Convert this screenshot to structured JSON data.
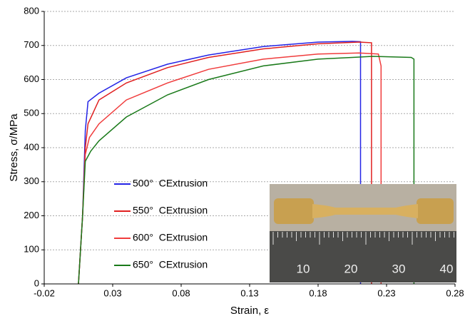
{
  "chart_data": {
    "type": "line",
    "xlabel": "Strain, ε",
    "ylabel": "Stress, σ/MPa",
    "xlim": [
      -0.02,
      0.28
    ],
    "xticks": [
      -0.02,
      0.03,
      0.08,
      0.13,
      0.18,
      0.23,
      0.28
    ],
    "ylim": [
      0,
      800
    ],
    "yticks": [
      0,
      100,
      200,
      300,
      400,
      500,
      600,
      700,
      800
    ],
    "grid": true,
    "legend": "lower-left",
    "inset_labels": [
      "10",
      "20",
      "30",
      "40"
    ],
    "series": [
      {
        "name": "500°  CExtrusion",
        "color": "#2424e6",
        "x": [
          0.005,
          0.008,
          0.01,
          0.012,
          0.02,
          0.04,
          0.07,
          0.1,
          0.14,
          0.18,
          0.205,
          0.211,
          0.211
        ],
        "values": [
          0,
          200,
          450,
          535,
          560,
          605,
          645,
          672,
          697,
          710,
          712,
          711,
          0
        ]
      },
      {
        "name": "550°  CExtrusion",
        "color": "#e02020",
        "x": [
          0.005,
          0.008,
          0.01,
          0.012,
          0.02,
          0.04,
          0.07,
          0.1,
          0.14,
          0.18,
          0.21,
          0.219,
          0.219
        ],
        "values": [
          0,
          200,
          400,
          470,
          540,
          590,
          635,
          665,
          690,
          705,
          710,
          708,
          0
        ]
      },
      {
        "name": "600°  CExtrusion",
        "color": "#f03c3c",
        "x": [
          0.005,
          0.008,
          0.01,
          0.013,
          0.02,
          0.04,
          0.07,
          0.1,
          0.14,
          0.18,
          0.21,
          0.224,
          0.226,
          0.226
        ],
        "values": [
          0,
          200,
          380,
          430,
          470,
          540,
          590,
          630,
          660,
          675,
          678,
          675,
          640,
          0
        ]
      },
      {
        "name": "650°  CExtrusion",
        "color": "#1a7a1a",
        "x": [
          0.005,
          0.008,
          0.01,
          0.014,
          0.02,
          0.04,
          0.07,
          0.1,
          0.14,
          0.18,
          0.22,
          0.248,
          0.25,
          0.25
        ],
        "values": [
          0,
          200,
          360,
          390,
          420,
          490,
          555,
          600,
          640,
          660,
          668,
          665,
          660,
          0
        ]
      }
    ]
  }
}
